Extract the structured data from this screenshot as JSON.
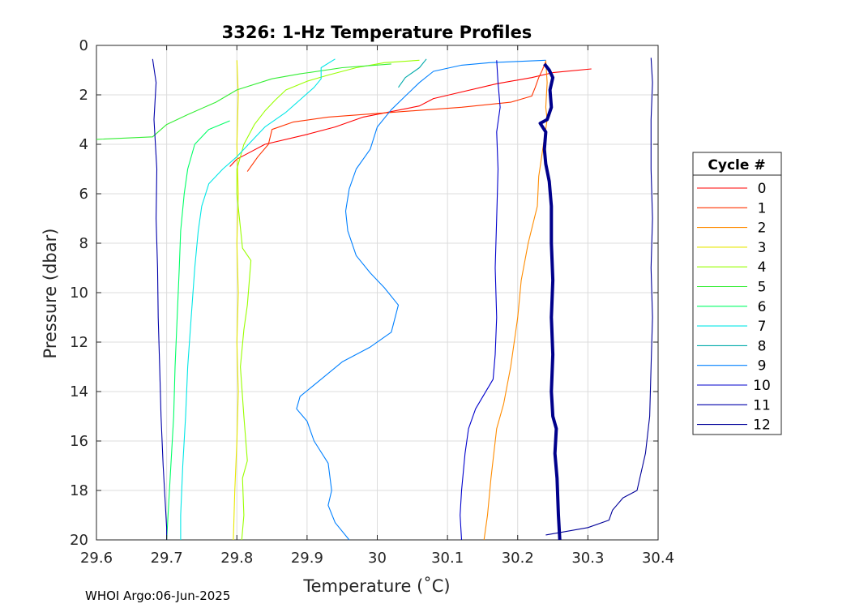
{
  "footer": "WHOI Argo:06-Jun-2025",
  "chart_data": {
    "type": "line",
    "title": "3326: 1-Hz Temperature Profiles",
    "xlabel": "Temperature (˚C)",
    "ylabel": "Pressure (dbar)",
    "xlim": [
      29.6,
      30.4
    ],
    "ylim": [
      0,
      20
    ],
    "y_reversed": true,
    "grid": true,
    "xticks": [
      "29.6",
      "29.7",
      "29.8",
      "29.9",
      "30",
      "30.1",
      "30.2",
      "30.3",
      "30.4"
    ],
    "yticks": [
      "0",
      "2",
      "4",
      "6",
      "8",
      "10",
      "12",
      "14",
      "16",
      "18",
      "20"
    ],
    "legend_title": "Cycle #",
    "legend_position": "right-outside",
    "series": [
      {
        "name": "0",
        "color": "#ff0000",
        "points": [
          [
            30.305,
            0.95
          ],
          [
            30.25,
            1.1
          ],
          [
            30.22,
            1.3
          ],
          [
            30.17,
            1.55
          ],
          [
            30.11,
            1.95
          ],
          [
            30.08,
            2.15
          ],
          [
            30.06,
            2.45
          ],
          [
            29.98,
            2.9
          ],
          [
            29.94,
            3.3
          ],
          [
            29.9,
            3.6
          ],
          [
            29.84,
            4.0
          ],
          [
            29.82,
            4.3
          ],
          [
            29.8,
            4.6
          ],
          [
            29.79,
            4.9
          ]
        ]
      },
      {
        "name": "1",
        "color": "#ff3300",
        "points": [
          [
            30.24,
            0.65
          ],
          [
            30.235,
            1.0
          ],
          [
            30.23,
            1.3
          ],
          [
            30.225,
            1.7
          ],
          [
            30.22,
            2.05
          ],
          [
            30.19,
            2.3
          ],
          [
            30.12,
            2.5
          ],
          [
            30.0,
            2.75
          ],
          [
            29.93,
            2.9
          ],
          [
            29.88,
            3.1
          ],
          [
            29.85,
            3.4
          ],
          [
            29.845,
            4.0
          ],
          [
            29.83,
            4.5
          ],
          [
            29.815,
            5.1
          ]
        ]
      },
      {
        "name": "2",
        "color": "#ff8c00",
        "points": [
          [
            30.24,
            0.6
          ],
          [
            30.242,
            1.5
          ],
          [
            30.24,
            2.5
          ],
          [
            30.242,
            3.0
          ],
          [
            30.23,
            5.3
          ],
          [
            30.228,
            6.5
          ],
          [
            30.215,
            8.0
          ],
          [
            30.205,
            9.5
          ],
          [
            30.2,
            11.0
          ],
          [
            30.19,
            13.0
          ],
          [
            30.18,
            14.5
          ],
          [
            30.17,
            15.5
          ],
          [
            30.162,
            17.5
          ],
          [
            30.157,
            19.0
          ],
          [
            30.152,
            20.0
          ]
        ]
      },
      {
        "name": "3",
        "color": "#e8e800",
        "points": [
          [
            29.8,
            0.6
          ],
          [
            29.802,
            2.0
          ],
          [
            29.8,
            4.0
          ],
          [
            29.802,
            6.0
          ],
          [
            29.8,
            8.0
          ],
          [
            29.802,
            10.0
          ],
          [
            29.8,
            12.0
          ],
          [
            29.802,
            14.0
          ],
          [
            29.8,
            16.0
          ],
          [
            29.797,
            18.0
          ],
          [
            29.795,
            20.0
          ]
        ]
      },
      {
        "name": "4",
        "color": "#99ff00",
        "points": [
          [
            30.06,
            0.6
          ],
          [
            30.01,
            0.7
          ],
          [
            29.97,
            0.9
          ],
          [
            29.93,
            1.2
          ],
          [
            29.9,
            1.45
          ],
          [
            29.87,
            1.8
          ],
          [
            29.855,
            2.2
          ],
          [
            29.84,
            2.65
          ],
          [
            29.825,
            3.2
          ],
          [
            29.81,
            4.0
          ],
          [
            29.8,
            5.0
          ],
          [
            29.8,
            6.0
          ],
          [
            29.808,
            8.2
          ],
          [
            29.82,
            8.7
          ],
          [
            29.815,
            10.5
          ],
          [
            29.81,
            11.5
          ],
          [
            29.805,
            13.0
          ],
          [
            29.81,
            15.0
          ],
          [
            29.815,
            16.8
          ],
          [
            29.808,
            17.5
          ],
          [
            29.81,
            19.0
          ],
          [
            29.807,
            20.0
          ]
        ]
      },
      {
        "name": "5",
        "color": "#33ee33",
        "points": [
          [
            30.02,
            0.75
          ],
          [
            29.95,
            0.9
          ],
          [
            29.89,
            1.15
          ],
          [
            29.85,
            1.35
          ],
          [
            29.8,
            1.8
          ],
          [
            29.77,
            2.3
          ],
          [
            29.73,
            2.8
          ],
          [
            29.7,
            3.2
          ],
          [
            29.68,
            3.7
          ],
          [
            29.6,
            3.8
          ]
        ]
      },
      {
        "name": "6",
        "color": "#00ff66",
        "points": [
          [
            29.79,
            3.05
          ],
          [
            29.76,
            3.4
          ],
          [
            29.74,
            4.0
          ],
          [
            29.73,
            5.0
          ],
          [
            29.725,
            6.0
          ],
          [
            29.72,
            7.5
          ],
          [
            29.718,
            9.0
          ],
          [
            29.715,
            11.0
          ],
          [
            29.712,
            13.0
          ],
          [
            29.71,
            15.0
          ],
          [
            29.706,
            17.0
          ],
          [
            29.703,
            18.5
          ],
          [
            29.7,
            20.0
          ]
        ]
      },
      {
        "name": "7",
        "color": "#00e6e6",
        "points": [
          [
            29.94,
            0.55
          ],
          [
            29.92,
            0.9
          ],
          [
            29.92,
            1.35
          ],
          [
            29.91,
            1.7
          ],
          [
            29.89,
            2.2
          ],
          [
            29.87,
            2.7
          ],
          [
            29.84,
            3.3
          ],
          [
            29.82,
            3.9
          ],
          [
            29.8,
            4.5
          ],
          [
            29.78,
            5.0
          ],
          [
            29.76,
            5.6
          ],
          [
            29.75,
            6.5
          ],
          [
            29.745,
            7.5
          ],
          [
            29.74,
            9.0
          ],
          [
            29.735,
            11.0
          ],
          [
            29.73,
            13.0
          ],
          [
            29.727,
            15.0
          ],
          [
            29.723,
            17.0
          ],
          [
            29.72,
            19.0
          ],
          [
            29.72,
            20.0
          ]
        ]
      },
      {
        "name": "8",
        "color": "#00aaaa",
        "points": [
          [
            30.07,
            0.55
          ],
          [
            30.06,
            0.9
          ],
          [
            30.04,
            1.3
          ],
          [
            30.03,
            1.7
          ]
        ]
      },
      {
        "name": "9",
        "color": "#0080ff",
        "points": [
          [
            30.24,
            0.6
          ],
          [
            30.2,
            0.65
          ],
          [
            30.16,
            0.7
          ],
          [
            30.12,
            0.8
          ],
          [
            30.08,
            1.05
          ],
          [
            30.06,
            1.5
          ],
          [
            30.04,
            2.05
          ],
          [
            30.02,
            2.6
          ],
          [
            30.0,
            3.3
          ],
          [
            29.99,
            4.2
          ],
          [
            29.97,
            5.0
          ],
          [
            29.96,
            5.8
          ],
          [
            29.955,
            6.7
          ],
          [
            29.958,
            7.5
          ],
          [
            29.97,
            8.5
          ],
          [
            29.99,
            9.2
          ],
          [
            30.01,
            9.8
          ],
          [
            30.03,
            10.5
          ],
          [
            30.02,
            11.6
          ],
          [
            29.99,
            12.2
          ],
          [
            29.95,
            12.8
          ],
          [
            29.92,
            13.5
          ],
          [
            29.89,
            14.2
          ],
          [
            29.885,
            14.7
          ],
          [
            29.9,
            15.2
          ],
          [
            29.91,
            16.0
          ],
          [
            29.93,
            16.9
          ],
          [
            29.935,
            18.0
          ],
          [
            29.93,
            18.6
          ],
          [
            29.94,
            19.3
          ],
          [
            29.96,
            20.0
          ]
        ]
      },
      {
        "name": "10",
        "color": "#0000cc",
        "points": [
          [
            30.17,
            0.6
          ],
          [
            30.172,
            1.5
          ],
          [
            30.175,
            2.5
          ],
          [
            30.17,
            3.5
          ],
          [
            30.172,
            5.0
          ],
          [
            30.17,
            7.0
          ],
          [
            30.168,
            9.0
          ],
          [
            30.17,
            11.0
          ],
          [
            30.168,
            12.5
          ],
          [
            30.165,
            13.5
          ],
          [
            30.14,
            14.7
          ],
          [
            30.13,
            15.5
          ],
          [
            30.125,
            16.5
          ],
          [
            30.12,
            18.0
          ],
          [
            30.118,
            19.0
          ],
          [
            30.12,
            20.0
          ]
        ]
      },
      {
        "name": "11",
        "color": "#0000aa",
        "points": [
          [
            29.68,
            0.55
          ],
          [
            29.685,
            1.5
          ],
          [
            29.682,
            3.0
          ],
          [
            29.686,
            5.0
          ],
          [
            29.685,
            7.0
          ],
          [
            29.687,
            9.0
          ],
          [
            29.688,
            11.0
          ],
          [
            29.69,
            13.0
          ],
          [
            29.692,
            15.0
          ],
          [
            29.695,
            17.0
          ],
          [
            29.698,
            18.5
          ],
          [
            29.7,
            19.5
          ],
          [
            29.7,
            20.0
          ]
        ]
      },
      {
        "name": "12",
        "color": "#000099",
        "points": [
          [
            30.39,
            0.5
          ],
          [
            30.392,
            1.5
          ],
          [
            30.39,
            3.0
          ],
          [
            30.39,
            5.0
          ],
          [
            30.392,
            7.0
          ],
          [
            30.39,
            9.0
          ],
          [
            30.392,
            11.0
          ],
          [
            30.39,
            13.0
          ],
          [
            30.388,
            15.0
          ],
          [
            30.382,
            16.5
          ],
          [
            30.37,
            18.0
          ],
          [
            30.35,
            18.3
          ],
          [
            30.335,
            18.8
          ],
          [
            30.33,
            19.2
          ],
          [
            30.3,
            19.5
          ],
          [
            30.26,
            19.7
          ],
          [
            30.24,
            19.8
          ]
        ]
      },
      {
        "name": "",
        "color": "#00008b",
        "thick": true,
        "points": [
          [
            30.238,
            0.75
          ],
          [
            30.245,
            1.0
          ],
          [
            30.25,
            1.3
          ],
          [
            30.246,
            1.8
          ],
          [
            30.248,
            2.5
          ],
          [
            30.242,
            3.0
          ],
          [
            30.232,
            3.15
          ],
          [
            30.24,
            3.5
          ],
          [
            30.238,
            4.2
          ],
          [
            30.24,
            4.8
          ],
          [
            30.245,
            5.5
          ],
          [
            30.248,
            6.5
          ],
          [
            30.248,
            8.0
          ],
          [
            30.25,
            9.5
          ],
          [
            30.248,
            11.0
          ],
          [
            30.25,
            12.5
          ],
          [
            30.248,
            14.0
          ],
          [
            30.25,
            15.0
          ],
          [
            30.255,
            15.5
          ],
          [
            30.253,
            16.5
          ],
          [
            30.256,
            17.5
          ],
          [
            30.258,
            19.0
          ],
          [
            30.26,
            20.0
          ]
        ]
      }
    ]
  }
}
